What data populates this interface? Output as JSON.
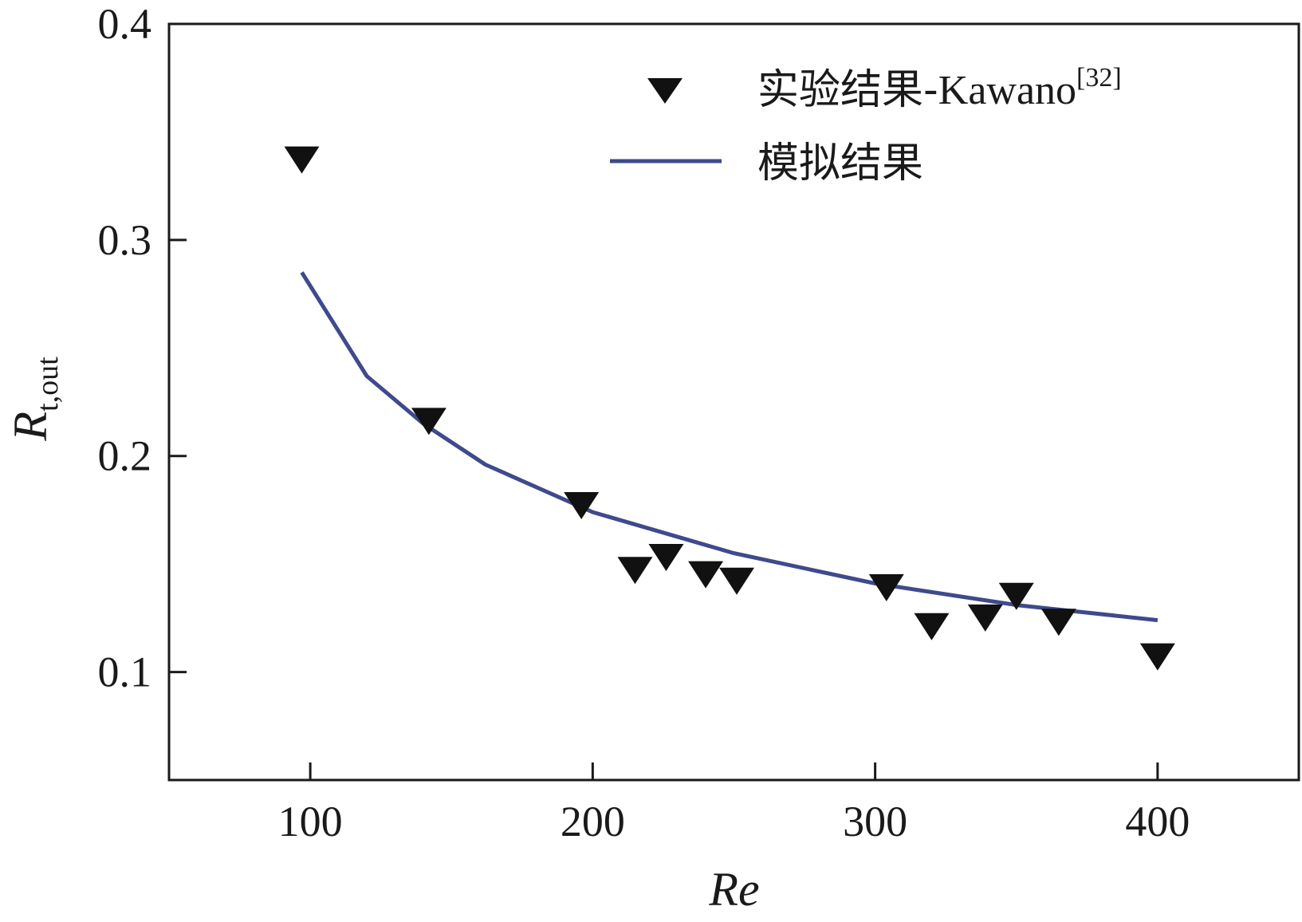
{
  "chart_data": {
    "type": "line+scatter",
    "xlabel": "Re",
    "ylabel": "R",
    "ylabel_sub": "t,out",
    "xlim": [
      50,
      450
    ],
    "ylim": [
      0.05,
      0.4
    ],
    "xticks": [
      100,
      200,
      300,
      400
    ],
    "xtick_labels": [
      "100",
      "200",
      "300",
      "400"
    ],
    "yticks": [
      0.1,
      0.2,
      0.3,
      0.4
    ],
    "ytick_labels": [
      "0.1",
      "0.2",
      "0.3",
      "0.4"
    ],
    "grid": false,
    "legend_position": "top-right",
    "series": [
      {
        "name": "实验结果-Kawano",
        "name_latin_part": "Kawano",
        "name_cjk_part": "实验结果-",
        "name_sup": "[32]",
        "kind": "scatter",
        "marker": "triangle-down",
        "color": "#111111",
        "x": [
          97,
          142,
          196,
          215,
          226,
          240,
          251,
          304,
          320,
          339,
          350,
          365,
          400
        ],
        "y": [
          0.337,
          0.216,
          0.177,
          0.147,
          0.153,
          0.145,
          0.142,
          0.139,
          0.121,
          0.125,
          0.135,
          0.123,
          0.107
        ]
      },
      {
        "name": "模拟结果",
        "kind": "line",
        "color": "#3f4a8c",
        "x": [
          97,
          120,
          140,
          162,
          200,
          250,
          300,
          320,
          350,
          400
        ],
        "y": [
          0.285,
          0.237,
          0.215,
          0.196,
          0.174,
          0.155,
          0.141,
          0.137,
          0.131,
          0.124
        ]
      }
    ]
  }
}
